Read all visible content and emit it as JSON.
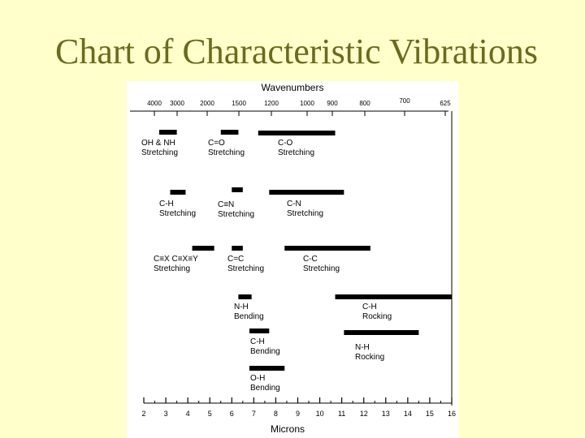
{
  "slide": {
    "title": "Chart of Characteristic Vibrations"
  },
  "chart_data": {
    "type": "bar",
    "title": "Chart of Characteristic Vibrations",
    "top_axis_label": "Wavenumbers",
    "bottom_axis_label": "Microns",
    "wavenumber_ticks": [
      "4000",
      "3000",
      "2000",
      "1500",
      "1200",
      "1000",
      "900",
      "800",
      "700",
      "625"
    ],
    "micron_range": [
      2,
      16
    ],
    "micron_ticks": [
      "2",
      "3",
      "4",
      "5",
      "6",
      "7",
      "8",
      "9",
      "10",
      "11",
      "12",
      "13",
      "14",
      "15",
      "16"
    ],
    "series": [
      {
        "name": "OH & NH Stretching",
        "label_lines": [
          "OH & NH",
          "Stretching"
        ],
        "start": 2.7,
        "end": 3.5
      },
      {
        "name": "C=O Stretching",
        "label_lines": [
          "C=O",
          "Stretching"
        ],
        "start": 5.5,
        "end": 6.3
      },
      {
        "name": "C-O Stretching",
        "label_lines": [
          "C-O",
          "Stretching"
        ],
        "start": 7.2,
        "end": 10.7
      },
      {
        "name": "C-H Stretching",
        "label_lines": [
          "C-H",
          "Stretching"
        ],
        "start": 3.2,
        "end": 3.9
      },
      {
        "name": "C≡N Stretching",
        "label_lines": [
          "C≡N",
          "Stretching"
        ],
        "start": 6.0,
        "end": 6.5
      },
      {
        "name": "C-N Stretching",
        "label_lines": [
          "C-N",
          "Stretching"
        ],
        "start": 7.7,
        "end": 11.1
      },
      {
        "name": "C≡X C≡X≡Y Stretching",
        "label_lines": [
          "C≡X  C≡X≡Y",
          "Stretching"
        ],
        "start": 4.2,
        "end": 5.2
      },
      {
        "name": "C=C Stretching",
        "label_lines": [
          "C=C",
          "Stretching"
        ],
        "start": 6.0,
        "end": 6.5
      },
      {
        "name": "C-C Stretching",
        "label_lines": [
          "C-C",
          "Stretching"
        ],
        "start": 8.4,
        "end": 12.3
      },
      {
        "name": "N-H Bending",
        "label_lines": [
          "N-H",
          "Bending"
        ],
        "start": 6.3,
        "end": 6.9
      },
      {
        "name": "C-H Rocking",
        "label_lines": [
          "C-H",
          "Rocking"
        ],
        "start": 10.7,
        "end": 16.0
      },
      {
        "name": "C-H Bending",
        "label_lines": [
          "C-H",
          "Bending"
        ],
        "start": 6.8,
        "end": 7.7
      },
      {
        "name": "N-H Rocking",
        "label_lines": [
          "N-H",
          "Rocking"
        ],
        "start": 11.1,
        "end": 14.5
      },
      {
        "name": "O-H Bending",
        "label_lines": [
          "O-H",
          "Bending"
        ],
        "start": 6.8,
        "end": 8.4
      }
    ]
  }
}
